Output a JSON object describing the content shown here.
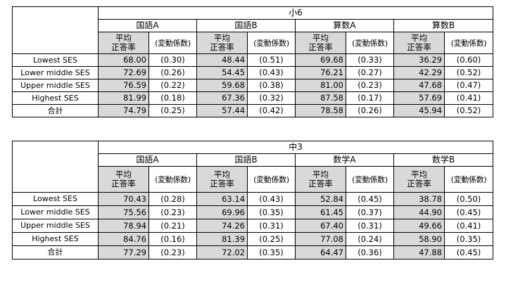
{
  "tables": [
    {
      "grade": "小6",
      "subjects": [
        "国語A",
        "国語B",
        "算数A",
        "算数B"
      ],
      "mean_header": "平均\n正答率",
      "cv_header": "(変動係数)",
      "rows": [
        {
          "label": "Lowest SES",
          "cells": [
            [
              "68.00",
              "(0.30)"
            ],
            [
              "48.44",
              "(0.51)"
            ],
            [
              "69.68",
              "(0.33)"
            ],
            [
              "36.29",
              "(0.60)"
            ]
          ]
        },
        {
          "label": "Lower middle  SES",
          "cells": [
            [
              "72.69",
              "(0.26)"
            ],
            [
              "54.45",
              "(0.43)"
            ],
            [
              "76.21",
              "(0.27)"
            ],
            [
              "42.29",
              "(0.52)"
            ]
          ]
        },
        {
          "label": "Upper middle SES",
          "cells": [
            [
              "76.59",
              "(0.22)"
            ],
            [
              "59.68",
              "(0.38)"
            ],
            [
              "81.00",
              "(0.23)"
            ],
            [
              "47.68",
              "(0.47)"
            ]
          ]
        },
        {
          "label": "Highest  SES",
          "cells": [
            [
              "81.99",
              "(0.18)"
            ],
            [
              "67.36",
              "(0.32)"
            ],
            [
              "87.58",
              "(0.17)"
            ],
            [
              "57.69",
              "(0.41)"
            ]
          ]
        },
        {
          "label": "合計",
          "cells": [
            [
              "74.79",
              "(0.25)"
            ],
            [
              "57.44",
              "(0.42)"
            ],
            [
              "78.58",
              "(0.26)"
            ],
            [
              "45.94",
              "(0.52)"
            ]
          ]
        }
      ]
    },
    {
      "grade": "中3",
      "subjects": [
        "国語A",
        "国語B",
        "数学A",
        "数学B"
      ],
      "mean_header": "平均\n正答率",
      "cv_header": "(変動係数)",
      "rows": [
        {
          "label": "Lowest SES",
          "cells": [
            [
              "70.43",
              "(0.28)"
            ],
            [
              "63.14",
              "(0.43)"
            ],
            [
              "52.84",
              "(0.45)"
            ],
            [
              "38.78",
              "(0.50)"
            ]
          ]
        },
        {
          "label": "Lower middle  SES",
          "cells": [
            [
              "75.56",
              "(0.23)"
            ],
            [
              "69.96",
              "(0.35)"
            ],
            [
              "61.45",
              "(0.37)"
            ],
            [
              "44.90",
              "(0.45)"
            ]
          ]
        },
        {
          "label": "Upper middle SES",
          "cells": [
            [
              "78.94",
              "(0.21)"
            ],
            [
              "74.26",
              "(0.31)"
            ],
            [
              "67.40",
              "(0.31)"
            ],
            [
              "49.66",
              "(0.41)"
            ]
          ]
        },
        {
          "label": "Highest  SES",
          "cells": [
            [
              "84.76",
              "(0.16)"
            ],
            [
              "81.39",
              "(0.25)"
            ],
            [
              "77.08",
              "(0.24)"
            ],
            [
              "58.90",
              "(0.35)"
            ]
          ]
        },
        {
          "label": "合計",
          "cells": [
            [
              "77.29",
              "(0.23)"
            ],
            [
              "72.02",
              "(0.35)"
            ],
            [
              "64.47",
              "(0.36)"
            ],
            [
              "47.88",
              "(0.45)"
            ]
          ]
        }
      ]
    }
  ],
  "colors": {
    "shade": "#d9d9d9",
    "border": "#000000"
  }
}
